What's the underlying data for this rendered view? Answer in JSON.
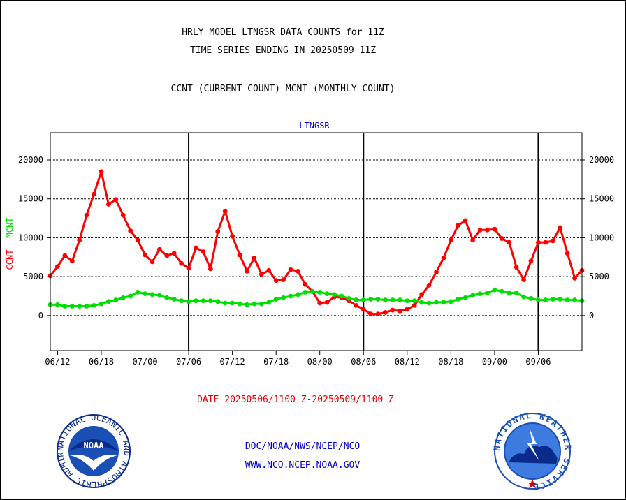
{
  "header": {
    "title_line1": "HRLY MODEL LTNGSR DATA COUNTS for 11Z",
    "title_line2": "TIME SERIES ENDING IN 20250509 11Z",
    "subtitle": "CCNT (CURRENT COUNT) MCNT (MONTHLY COUNT)"
  },
  "footer": {
    "date_range": "DATE 20250506/1100 Z-20250509/1100 Z",
    "credit_line1": "DOC/NOAA/NWS/NCEP/NCO",
    "credit_line2": "WWW.NCO.NCEP.NOAA.GOV"
  },
  "logos": {
    "left": "noaa-logo",
    "right": "national-weather-service-logo",
    "left_text": "NOAA",
    "left_ring_text": "NATIONAL OCEANIC AND ATMOSPHERIC ADMINISTRATION · U.S. DEPARTMENT OF COMMERCE",
    "right_ring_text": "NATIONAL WEATHER SERVICE"
  },
  "colors": {
    "ccnt": "#ff0000",
    "mcnt": "#00e000",
    "panel_title": "#0000c8",
    "date_range": "#e00000"
  },
  "chart_data": {
    "type": "line",
    "title": "LTNGSR",
    "ylabel": [
      "CCNT",
      "MCNT"
    ],
    "ylim": [
      -4500,
      23500
    ],
    "yticks": [
      0,
      5000,
      10000,
      15000,
      20000
    ],
    "ytick_labels": [
      "0",
      "5000",
      "10000",
      "15000",
      "20000"
    ],
    "x_tick_labels": [
      "06/12",
      "06/18",
      "07/00",
      "07/06",
      "07/12",
      "07/18",
      "08/00",
      "08/06",
      "08/12",
      "08/18",
      "09/00",
      "09/06"
    ],
    "day_boundaries": [
      "07/06",
      "08/06",
      "09/06"
    ],
    "grid": "horizontal",
    "series": [
      {
        "name": "CCNT",
        "values": [
          5100,
          6300,
          7700,
          7000,
          9700,
          12900,
          15600,
          18500,
          14300,
          14900,
          12900,
          10900,
          9700,
          7800,
          6900,
          8500,
          7700,
          8000,
          6700,
          6100,
          8700,
          8200,
          6000,
          10800,
          13400,
          10200,
          7800,
          5700,
          7400,
          5300,
          5800,
          4500,
          4600,
          5900,
          5700,
          4000,
          3100,
          1600,
          1700,
          2400,
          2300,
          1900,
          1300,
          800,
          200,
          200,
          400,
          700,
          600,
          800,
          1300,
          2700,
          3900,
          5600,
          7400,
          9700,
          11600,
          12200,
          9700,
          11000,
          11000,
          11100,
          9900,
          9400,
          6200,
          4600,
          7000,
          9400,
          9400,
          9600,
          11300,
          8000,
          4800,
          5800
        ]
      },
      {
        "name": "MCNT",
        "values": [
          1400,
          1400,
          1200,
          1200,
          1200,
          1200,
          1300,
          1500,
          1800,
          2000,
          2300,
          2500,
          3000,
          2800,
          2700,
          2600,
          2300,
          2100,
          1900,
          1800,
          1900,
          1900,
          1900,
          1800,
          1600,
          1600,
          1500,
          1400,
          1500,
          1500,
          1700,
          2100,
          2300,
          2500,
          2700,
          3000,
          3100,
          3000,
          2800,
          2700,
          2500,
          2200,
          2000,
          2000,
          2100,
          2100,
          2000,
          2000,
          2000,
          1900,
          1900,
          1700,
          1600,
          1700,
          1700,
          1800,
          2100,
          2300,
          2600,
          2800,
          2900,
          3300,
          3100,
          2900,
          2900,
          2400,
          2200,
          2000,
          2000,
          2100,
          2100,
          2000,
          2000,
          1900
        ]
      }
    ]
  }
}
